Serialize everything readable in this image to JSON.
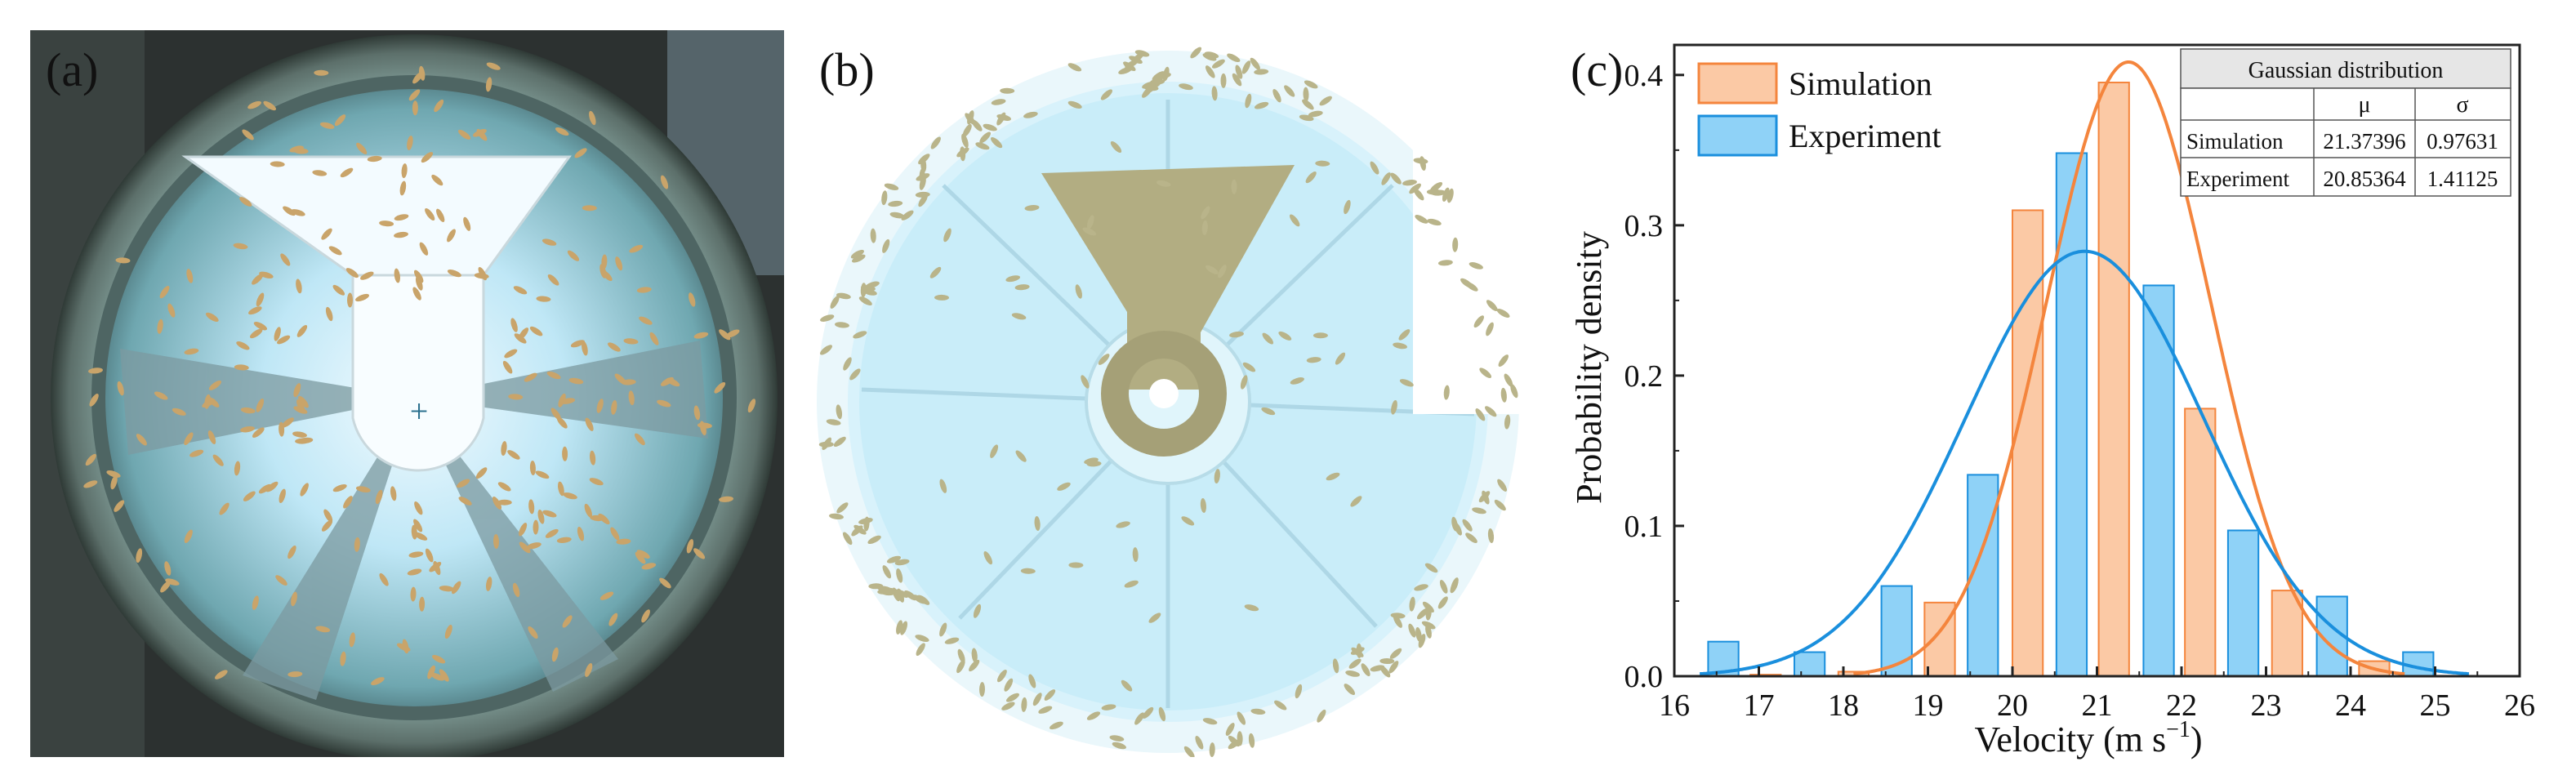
{
  "panels": {
    "a": {
      "label": "(a)",
      "mark": "+"
    },
    "b": {
      "label": "(b)"
    },
    "c": {
      "label": "(c)"
    }
  },
  "colors": {
    "simulation": "#f4853d",
    "simulation_fill": "#fbc9a5",
    "experiment": "#1a8fdd",
    "experiment_fill": "#8fd2f7"
  },
  "chart_data": {
    "type": "bar",
    "xlabel": "Velocity (m s",
    "xlabel_sup": "−1",
    "xlabel_tail": ")",
    "ylabel": "Probability density",
    "xlim": [
      16,
      26
    ],
    "ylim": [
      0,
      0.42
    ],
    "xticks": [
      16,
      17,
      18,
      19,
      20,
      21,
      22,
      23,
      24,
      25,
      26
    ],
    "yticks": [
      "0.0",
      "0.1",
      "0.2",
      "0.3",
      "0.4"
    ],
    "ytick_values": [
      0,
      0.1,
      0.2,
      0.3,
      0.4
    ],
    "bin_width": 0.36,
    "series": [
      {
        "name": "Simulation",
        "bins": [
          {
            "x": 17.08,
            "y": 0.001
          },
          {
            "x": 18.12,
            "y": 0.003
          },
          {
            "x": 19.14,
            "y": 0.049
          },
          {
            "x": 20.18,
            "y": 0.31
          },
          {
            "x": 21.2,
            "y": 0.395
          },
          {
            "x": 22.22,
            "y": 0.178
          },
          {
            "x": 23.25,
            "y": 0.057
          },
          {
            "x": 24.28,
            "y": 0.01
          }
        ],
        "curve": {
          "mu": 21.37396,
          "sigma": 0.97631
        }
      },
      {
        "name": "Experiment",
        "bins": [
          {
            "x": 16.58,
            "y": 0.023
          },
          {
            "x": 17.6,
            "y": 0.016
          },
          {
            "x": 18.63,
            "y": 0.06
          },
          {
            "x": 19.65,
            "y": 0.134
          },
          {
            "x": 20.7,
            "y": 0.348
          },
          {
            "x": 21.73,
            "y": 0.26
          },
          {
            "x": 22.73,
            "y": 0.097
          },
          {
            "x": 23.78,
            "y": 0.053
          },
          {
            "x": 24.8,
            "y": 0.016
          }
        ],
        "curve": {
          "mu": 20.85364,
          "sigma": 1.41125
        }
      }
    ],
    "legend": {
      "position": "top-left",
      "items": [
        "Simulation",
        "Experiment"
      ]
    },
    "table": {
      "title": "Gaussian distribution",
      "columns": [
        "",
        "μ",
        "σ"
      ],
      "rows": [
        [
          "Simulation",
          "21.37396",
          "0.97631"
        ],
        [
          "Experiment",
          "20.85364",
          "1.41125"
        ]
      ]
    }
  }
}
